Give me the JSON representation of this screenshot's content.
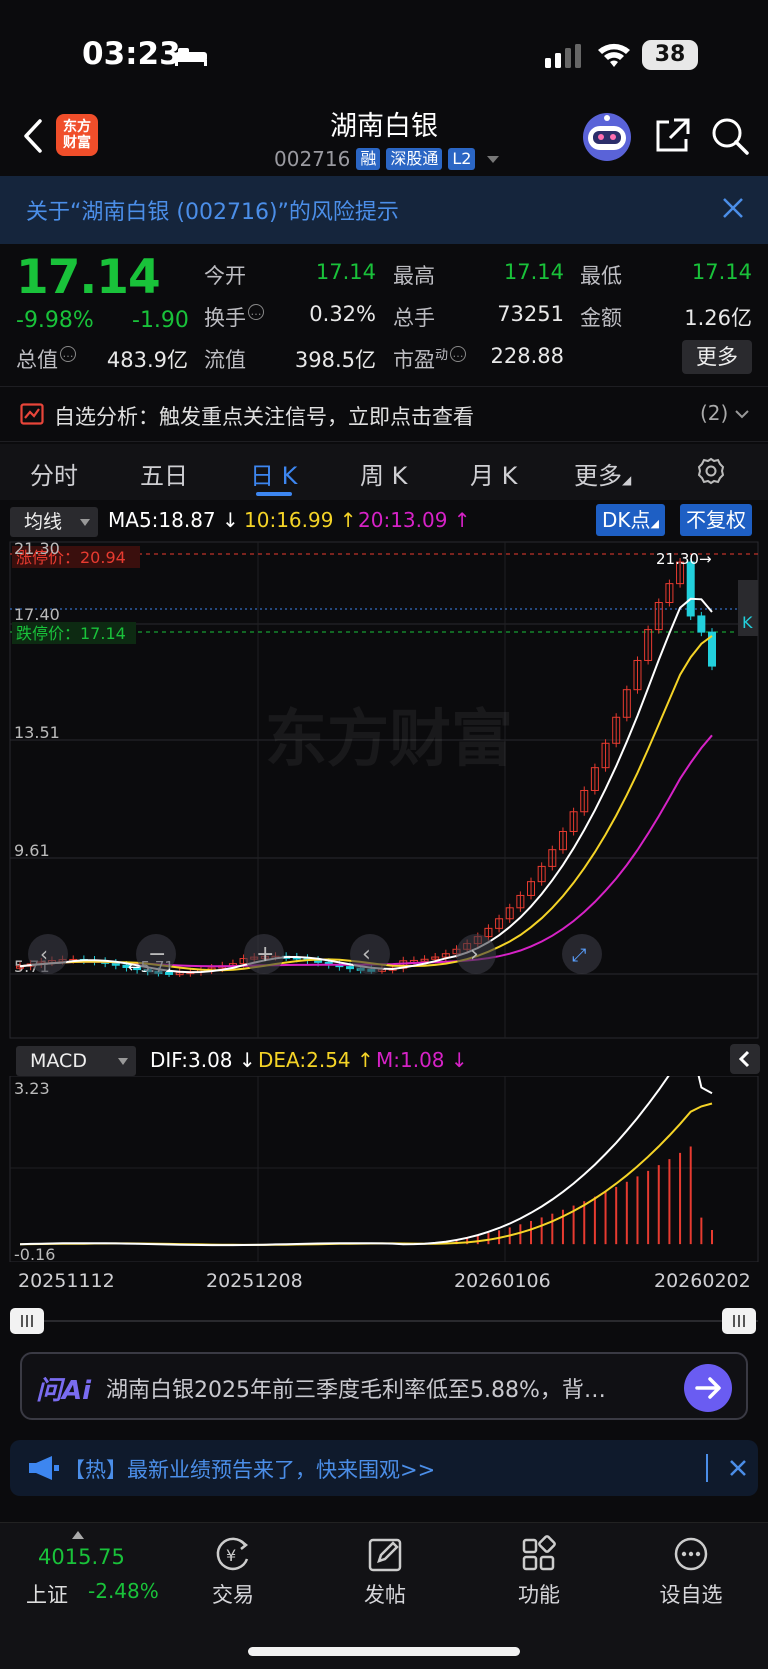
{
  "status_bar": {
    "time": "03:23",
    "battery": "38"
  },
  "header": {
    "logo": "东方\n财富",
    "name": "湖南白银",
    "code": "002716",
    "tags": [
      "融",
      "深股通",
      "L2"
    ]
  },
  "risk_banner": {
    "text": "关于“湖南白银 (002716)”的风险提示"
  },
  "quote": {
    "price": "17.14",
    "change_pct": "-9.98%",
    "change": "-1.90",
    "fields": [
      {
        "label": "今开",
        "value": "17.14",
        "green": true
      },
      {
        "label": "最高",
        "value": "17.14",
        "green": true
      },
      {
        "label": "最低",
        "value": "17.14",
        "green": true
      },
      {
        "label": "换手",
        "value": "0.32%",
        "green": false
      },
      {
        "label": "总手",
        "value": "73251",
        "green": false
      },
      {
        "label": "金额",
        "value": "1.26亿",
        "green": false
      },
      {
        "label": "总值",
        "value": "483.9亿",
        "green": false
      },
      {
        "label": "流值",
        "value": "398.5亿",
        "green": false
      },
      {
        "label": "市盈",
        "value": "228.88",
        "green": false
      }
    ],
    "pe_superscript": "动",
    "more_button": "更多"
  },
  "analysis": {
    "text": "自选分析：触发重点关注信号，立即点击查看",
    "count": "(2)"
  },
  "tabs": [
    {
      "label": "分时",
      "active": false
    },
    {
      "label": "五日",
      "active": false
    },
    {
      "label": "日 K",
      "active": true
    },
    {
      "label": "周 K",
      "active": false
    },
    {
      "label": "月 K",
      "active": false
    },
    {
      "label": "更多",
      "active": false
    }
  ],
  "indicators": {
    "selector": "均线",
    "ma5": "MA5:18.87",
    "ma10": "10:16.99",
    "ma20": "20:13.09",
    "dk_button": "DK点",
    "adjust_button": "不复权"
  },
  "chart": {
    "watermark": "东方财富",
    "y_labels": [
      "21.30",
      "17.40",
      "13.51",
      "9.61",
      "5.71"
    ],
    "limit_up": "涨停价：20.94",
    "limit_down": "跌停价：17.14",
    "high_marker": "21.30",
    "low_marker": "5.71",
    "colors": {
      "up": "#e83b30",
      "down": "#22d0dc",
      "ma5": "#ffffff",
      "ma10": "#f5d427",
      "ma20": "#d622c6"
    }
  },
  "macd": {
    "selector": "MACD",
    "dif": "DIF:3.08",
    "dea": "DEA:2.54",
    "m": "M:1.08",
    "y_top": "3.23",
    "y_bottom": "-0.16"
  },
  "dates": [
    "20251112",
    "20251208",
    "20260106",
    "20260202"
  ],
  "ai": {
    "logo": "问Ai",
    "text": "湖南白银2025年前三季度毛利率低至5.88%，背…"
  },
  "hot_banner": {
    "text": "【热】最新业绩预告来了，快来围观>>"
  },
  "bottom_nav": {
    "index_value": "4015.75",
    "index_name": "上证",
    "index_pct": "-2.48%",
    "items": [
      "交易",
      "发帖",
      "功能",
      "设自选"
    ]
  }
}
